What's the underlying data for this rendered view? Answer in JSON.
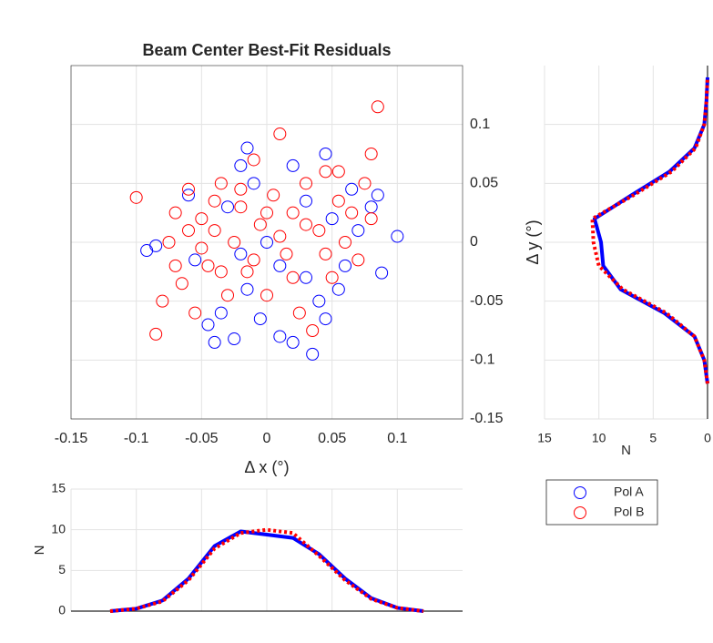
{
  "chart_data": [
    {
      "type": "scatter",
      "title": "Beam Center Best-Fit Residuals",
      "xlabel": "Δ x (°)",
      "xlim": [
        -0.15,
        0.15
      ],
      "ylim": [
        -0.15,
        0.15
      ],
      "xticks": [
        -0.15,
        -0.1,
        -0.05,
        0,
        0.05,
        0.1
      ],
      "yticks": [
        -0.15,
        -0.1,
        -0.05,
        0,
        0.05,
        0.1
      ],
      "grid": true,
      "yaxis_location": "right",
      "series": [
        {
          "name": "Pol A",
          "color": "#0000ff",
          "x": [
            -0.092,
            -0.085,
            -0.055,
            -0.045,
            -0.04,
            -0.035,
            -0.025,
            -0.015,
            -0.005,
            0.01,
            0.02,
            0.035,
            0.04,
            0.045,
            0.055,
            0.06,
            0.07,
            0.08,
            0.085,
            0.1,
            0.088,
            0.045,
            0.02,
            -0.015,
            -0.02,
            -0.01,
            0.03,
            0.05,
            -0.03,
            -0.06,
            0.0,
            0.01,
            -0.02,
            0.03,
            0.065
          ],
          "values": [
            -0.007,
            -0.003,
            -0.015,
            -0.07,
            -0.085,
            -0.06,
            -0.082,
            -0.04,
            -0.065,
            -0.08,
            -0.085,
            -0.095,
            -0.05,
            -0.065,
            -0.04,
            -0.02,
            0.01,
            0.03,
            0.04,
            0.005,
            -0.026,
            0.075,
            0.065,
            0.08,
            0.065,
            0.05,
            0.035,
            0.02,
            0.03,
            0.04,
            0.0,
            -0.02,
            -0.01,
            -0.03,
            0.045
          ]
        },
        {
          "name": "Pol B",
          "color": "#ff0000",
          "x": [
            -0.1,
            -0.085,
            -0.08,
            -0.075,
            -0.07,
            -0.065,
            -0.06,
            -0.055,
            -0.05,
            -0.045,
            -0.04,
            -0.035,
            -0.03,
            -0.025,
            -0.02,
            -0.015,
            -0.01,
            -0.005,
            0.0,
            0.005,
            0.01,
            0.015,
            0.02,
            0.025,
            0.03,
            0.035,
            0.04,
            0.045,
            0.05,
            0.055,
            0.06,
            0.065,
            0.07,
            0.075,
            0.08,
            0.085,
            0.08,
            -0.05,
            -0.06,
            -0.04,
            0.0,
            -0.01,
            0.02,
            0.03,
            -0.02,
            0.045,
            0.055,
            -0.035,
            0.01,
            -0.07
          ],
          "values": [
            0.038,
            -0.078,
            -0.05,
            0.0,
            0.025,
            -0.035,
            0.045,
            -0.06,
            0.02,
            -0.02,
            0.01,
            0.05,
            -0.045,
            0.0,
            0.03,
            -0.025,
            0.07,
            0.015,
            -0.045,
            0.04,
            0.092,
            -0.01,
            0.025,
            -0.06,
            0.05,
            -0.075,
            0.01,
            0.06,
            -0.03,
            0.035,
            0.0,
            0.025,
            -0.015,
            0.05,
            0.075,
            0.115,
            0.02,
            -0.005,
            0.01,
            0.035,
            0.025,
            -0.015,
            -0.03,
            0.015,
            0.045,
            -0.01,
            0.06,
            -0.025,
            0.005,
            -0.02
          ]
        }
      ]
    },
    {
      "type": "line",
      "orientation": "horizontal",
      "xlabel": "N",
      "ylabel": "Δ y (°)",
      "xlim": [
        15,
        0
      ],
      "xticks": [
        15,
        10,
        5,
        0
      ],
      "ylim": [
        -0.15,
        0.15
      ],
      "yticks": [
        -0.15,
        -0.1,
        -0.05,
        0,
        0.05,
        0.1
      ],
      "grid": true,
      "yticklabels": false,
      "y": [
        -0.12,
        -0.1,
        -0.08,
        -0.06,
        -0.04,
        -0.02,
        0,
        0.02,
        0.04,
        0.06,
        0.08,
        0.1,
        0.12,
        0.14
      ],
      "series": [
        {
          "color": "#0000ff",
          "style": "solid",
          "values": [
            0,
            0.3,
            1.2,
            4,
            8,
            9.6,
            9.8,
            10.4,
            7,
            3.5,
            1.2,
            0.3,
            0.1,
            0
          ]
        },
        {
          "color": "#ff0000",
          "style": "dotted",
          "values": [
            0,
            0.3,
            1.2,
            3.8,
            7.8,
            10,
            10.5,
            10.6,
            6.8,
            3.3,
            1.1,
            0.3,
            0.1,
            0
          ]
        }
      ]
    },
    {
      "type": "line",
      "ylabel": "N",
      "xlim": [
        -0.15,
        0.15
      ],
      "xticks": [
        -0.15,
        -0.1,
        -0.05,
        0,
        0.05,
        0.1
      ],
      "ylim": [
        0,
        15
      ],
      "yticks": [
        0,
        5,
        10,
        15
      ],
      "grid": true,
      "xticklabels": false,
      "x": [
        -0.12,
        -0.1,
        -0.08,
        -0.06,
        -0.04,
        -0.02,
        0,
        0.02,
        0.04,
        0.06,
        0.08,
        0.1,
        0.12
      ],
      "series": [
        {
          "color": "#0000ff",
          "style": "solid",
          "values": [
            0,
            0.3,
            1.3,
            4,
            8,
            9.8,
            9.4,
            9,
            7,
            4,
            1.6,
            0.4,
            0
          ]
        },
        {
          "color": "#ff0000",
          "style": "dotted",
          "values": [
            0,
            0.3,
            1.2,
            3.8,
            7.7,
            9.6,
            10,
            9.6,
            6.8,
            3.8,
            1.5,
            0.4,
            0
          ]
        }
      ]
    }
  ]
}
